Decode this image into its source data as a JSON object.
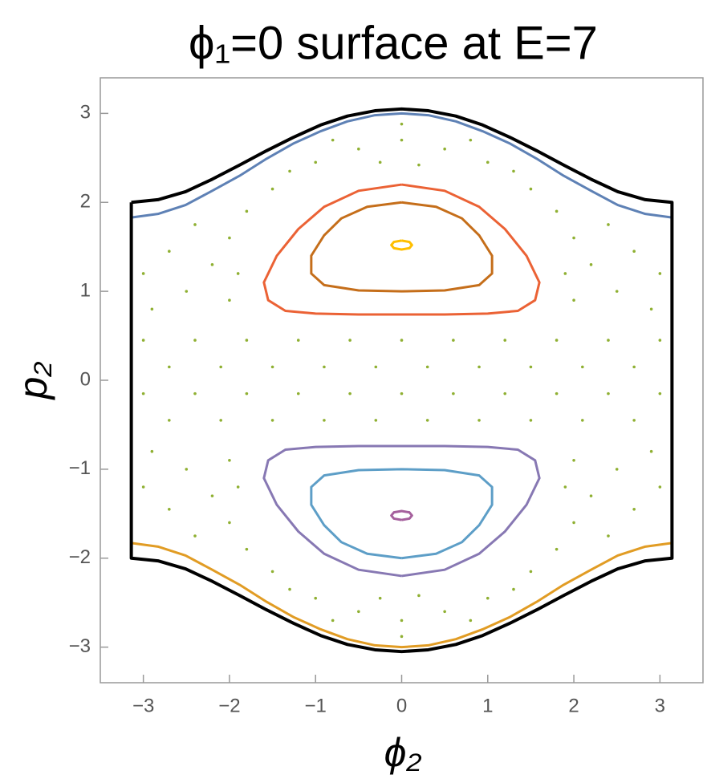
{
  "chart_data": {
    "type": "line",
    "title": "ϕ₁=0 surface at E=7",
    "x_label": "ϕ₂",
    "y_label": "p₂",
    "xlim": [
      -3.5,
      3.5
    ],
    "ylim": [
      -3.4,
      3.4
    ],
    "xticks": [
      {
        "value": -3,
        "label": "−3"
      },
      {
        "value": -2,
        "label": "−2"
      },
      {
        "value": -1,
        "label": "−1"
      },
      0,
      1,
      2,
      3
    ],
    "yticks": [
      {
        "value": -3,
        "label": "−3"
      },
      {
        "value": -2,
        "label": "−2"
      },
      {
        "value": -1,
        "label": "−1"
      },
      0,
      1,
      2,
      3
    ],
    "series": [
      {
        "type": "scatter",
        "color": "#8fb032",
        "x": [
          0,
          0.5,
          -0.5,
          0.2,
          -0.25,
          0.8,
          -0.8,
          0,
          1.0,
          -1.0,
          1.3,
          -1.3,
          1.5,
          -1.5,
          1.8,
          -1.8,
          2.0,
          -2.0,
          2.2,
          -2.2,
          2.4,
          -2.4,
          2.7,
          -2.7,
          3.0,
          -3.0,
          2.5,
          -2.5,
          2.9,
          -2.9,
          2.0,
          -2.0,
          1.9,
          -1.9,
          0,
          0.5,
          -0.5,
          0.2,
          -0.25,
          0.8,
          -0.8,
          0,
          1.0,
          -1.0,
          1.3,
          -1.3,
          1.5,
          -1.5,
          1.8,
          -1.8,
          2.0,
          -2.0,
          2.2,
          -2.2,
          2.4,
          -2.4,
          2.7,
          -2.7,
          3.0,
          -3.0,
          2.5,
          -2.5,
          2.9,
          -2.9,
          2.0,
          -2.0,
          1.9,
          -1.9,
          -3.0,
          -2.4,
          -1.8,
          -1.2,
          -0.6,
          0,
          0.6,
          1.2,
          1.8,
          2.4,
          3.0,
          -2.7,
          -2.1,
          -1.5,
          -0.9,
          -0.3,
          0.3,
          0.9,
          1.5,
          2.1,
          2.7,
          -3.0,
          -2.4,
          -1.8,
          -1.2,
          -0.6,
          0,
          0.6,
          1.2,
          1.8,
          2.4,
          3.0,
          -2.7,
          -2.1,
          -1.5,
          -0.9,
          -0.3,
          0.3,
          0.9,
          1.5,
          2.1,
          2.7
        ],
        "values": [
          2.7,
          2.6,
          2.6,
          2.42,
          2.45,
          2.7,
          2.7,
          2.88,
          2.45,
          2.45,
          2.35,
          2.35,
          2.15,
          2.15,
          1.9,
          1.9,
          1.6,
          1.6,
          1.3,
          1.3,
          1.75,
          1.75,
          1.45,
          1.45,
          1.2,
          1.2,
          1.0,
          1.0,
          0.8,
          0.8,
          0.9,
          0.9,
          1.2,
          1.2,
          -2.7,
          -2.6,
          -2.6,
          -2.42,
          -2.45,
          -2.7,
          -2.7,
          -2.88,
          -2.45,
          -2.45,
          -2.35,
          -2.35,
          -2.15,
          -2.15,
          -1.9,
          -1.9,
          -1.6,
          -1.6,
          -1.3,
          -1.3,
          -1.75,
          -1.75,
          -1.45,
          -1.45,
          -1.2,
          -1.2,
          -1.0,
          -1.0,
          -0.8,
          -0.8,
          -0.9,
          -0.9,
          -1.2,
          -1.2,
          0.45,
          0.45,
          0.45,
          0.45,
          0.45,
          0.45,
          0.45,
          0.45,
          0.45,
          0.45,
          0.45,
          0.15,
          0.15,
          0.15,
          0.15,
          0.15,
          0.15,
          0.15,
          0.15,
          0.15,
          0.15,
          -0.15,
          -0.15,
          -0.15,
          -0.15,
          -0.15,
          -0.15,
          -0.15,
          -0.15,
          -0.15,
          -0.15,
          -0.15,
          -0.45,
          -0.45,
          -0.45,
          -0.45,
          -0.45,
          -0.45,
          -0.45,
          -0.45,
          -0.45,
          -0.45
        ]
      },
      {
        "type": "line",
        "color": "#5e81b5",
        "x": [
          -3.14,
          -2.83,
          -2.51,
          -2.2,
          -1.88,
          -1.57,
          -1.26,
          -0.94,
          -0.63,
          -0.31,
          0,
          0.31,
          0.63,
          0.94,
          1.26,
          1.57,
          1.88,
          2.2,
          2.51,
          2.83,
          3.14
        ],
        "values": [
          1.83,
          1.87,
          1.97,
          2.13,
          2.3,
          2.49,
          2.66,
          2.8,
          2.91,
          2.98,
          3,
          2.98,
          2.91,
          2.8,
          2.66,
          2.49,
          2.3,
          2.13,
          1.97,
          1.87,
          1.83
        ]
      },
      {
        "type": "line",
        "color": "#e19c24",
        "x": [
          -3.14,
          -2.83,
          -2.51,
          -2.2,
          -1.88,
          -1.57,
          -1.26,
          -0.94,
          -0.63,
          -0.31,
          0,
          0.31,
          0.63,
          0.94,
          1.26,
          1.57,
          1.88,
          2.2,
          2.51,
          2.83,
          3.14
        ],
        "values": [
          -1.83,
          -1.87,
          -1.97,
          -2.13,
          -2.3,
          -2.49,
          -2.66,
          -2.8,
          -2.91,
          -2.98,
          -3,
          -2.98,
          -2.91,
          -2.8,
          -2.66,
          -2.49,
          -2.3,
          -2.13,
          -1.97,
          -1.87,
          -1.83
        ]
      },
      {
        "type": "line",
        "color": "#eb6235",
        "x": [
          0,
          0.5,
          0.9,
          1.2,
          1.45,
          1.6,
          1.55,
          1.35,
          1.0,
          0.5,
          0,
          -0.5,
          -1.0,
          -1.35,
          -1.55,
          -1.6,
          -1.45,
          -1.2,
          -0.9,
          -0.5,
          0
        ],
        "values": [
          2.2,
          2.13,
          1.95,
          1.7,
          1.4,
          1.1,
          0.9,
          0.78,
          0.75,
          0.74,
          0.74,
          0.74,
          0.75,
          0.78,
          0.9,
          1.1,
          1.4,
          1.7,
          1.95,
          2.13,
          2.2
        ]
      },
      {
        "type": "line",
        "color": "#c56e1a",
        "x": [
          0,
          0.4,
          0.7,
          0.9,
          1.05,
          1.05,
          0.9,
          0.5,
          0,
          -0.5,
          -0.9,
          -1.05,
          -1.05,
          -0.9,
          -0.7,
          -0.4,
          0
        ],
        "values": [
          2.0,
          1.95,
          1.82,
          1.63,
          1.4,
          1.2,
          1.07,
          1.01,
          1.0,
          1.01,
          1.07,
          1.2,
          1.4,
          1.63,
          1.82,
          1.95,
          2.0
        ]
      },
      {
        "type": "line",
        "color": "#ffbf00",
        "x": [
          0,
          0.09,
          0.12,
          0.09,
          0,
          -0.09,
          -0.12,
          -0.09,
          0
        ],
        "values": [
          1.57,
          1.555,
          1.52,
          1.485,
          1.47,
          1.485,
          1.52,
          1.555,
          1.57
        ]
      },
      {
        "type": "line",
        "color": "#8778b3",
        "x": [
          0,
          0.5,
          0.9,
          1.2,
          1.45,
          1.6,
          1.55,
          1.35,
          1.0,
          0.5,
          0,
          -0.5,
          -1.0,
          -1.35,
          -1.55,
          -1.6,
          -1.45,
          -1.2,
          -0.9,
          -0.5,
          0
        ],
        "values": [
          -2.2,
          -2.13,
          -1.95,
          -1.7,
          -1.4,
          -1.1,
          -0.9,
          -0.78,
          -0.75,
          -0.74,
          -0.74,
          -0.74,
          -0.75,
          -0.78,
          -0.9,
          -1.1,
          -1.4,
          -1.7,
          -1.95,
          -2.13,
          -2.2
        ]
      },
      {
        "type": "line",
        "color": "#5d9ec7",
        "x": [
          0,
          0.4,
          0.7,
          0.9,
          1.05,
          1.05,
          0.9,
          0.5,
          0,
          -0.5,
          -0.9,
          -1.05,
          -1.05,
          -0.9,
          -0.7,
          -0.4,
          0
        ],
        "values": [
          -2.0,
          -1.95,
          -1.82,
          -1.63,
          -1.4,
          -1.2,
          -1.07,
          -1.01,
          -1.0,
          -1.01,
          -1.07,
          -1.2,
          -1.4,
          -1.63,
          -1.82,
          -1.95,
          -2.0
        ]
      },
      {
        "type": "line",
        "color": "#a5609d",
        "x": [
          0,
          0.09,
          0.12,
          0.09,
          0,
          -0.09,
          -0.12,
          -0.09,
          0
        ],
        "values": [
          -1.57,
          -1.555,
          -1.52,
          -1.485,
          -1.47,
          -1.485,
          -1.52,
          -1.555,
          -1.57
        ]
      },
      {
        "type": "line",
        "color": "#000000",
        "x": [
          -3.14,
          -2.83,
          -2.51,
          -2.2,
          -1.88,
          -1.57,
          -1.26,
          -0.94,
          -0.63,
          -0.31,
          0,
          0.31,
          0.63,
          0.94,
          1.26,
          1.57,
          1.88,
          2.2,
          2.51,
          2.83,
          3.14,
          3.14,
          2.83,
          2.51,
          2.2,
          1.88,
          1.57,
          1.26,
          0.94,
          0.63,
          0.31,
          0,
          -0.31,
          -0.63,
          -0.94,
          -1.26,
          -1.57,
          -1.88,
          -2.2,
          -2.51,
          -2.83,
          -3.14,
          -3.14
        ],
        "values": [
          2,
          2.03,
          2.12,
          2.26,
          2.42,
          2.58,
          2.73,
          2.87,
          2.97,
          3.03,
          3.05,
          3.03,
          2.97,
          2.87,
          2.73,
          2.58,
          2.42,
          2.26,
          2.12,
          2.03,
          2,
          -2,
          -2.03,
          -2.12,
          -2.26,
          -2.42,
          -2.58,
          -2.73,
          -2.87,
          -2.97,
          -3.03,
          -3.05,
          -3.03,
          -2.97,
          -2.87,
          -2.73,
          -2.58,
          -2.42,
          -2.26,
          -2.12,
          -2.03,
          -2,
          2
        ]
      }
    ]
  }
}
